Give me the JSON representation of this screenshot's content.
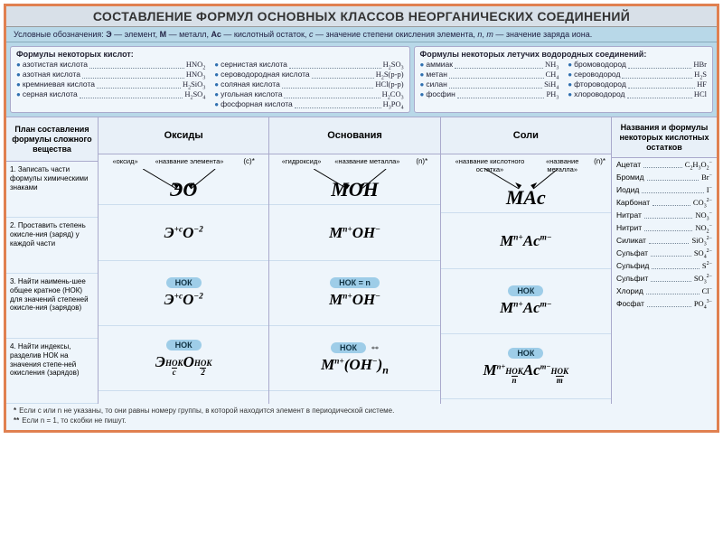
{
  "title": "СОСТАВЛЕНИЕ ФОРМУЛ ОСНОВНЫХ КЛАССОВ НЕОРГАНИЧЕСКИХ СОЕДИНЕНИЙ",
  "legend": "Условные обозначения: Э — элемент, М — металл, Ас — кислотный остаток, с — значение степени окисления элемента, n, m — значение заряда иона.",
  "acids_title": "Формулы некоторых кислот:",
  "acids_col1": [
    {
      "name": "азотистая кислота",
      "f": "HNO₂"
    },
    {
      "name": "азотная кислота",
      "f": "HNO₃"
    },
    {
      "name": "кремниевая кислота",
      "f": "H₂SiO₃"
    },
    {
      "name": "серная кислота",
      "f": "H₂SO₄"
    }
  ],
  "acids_col2": [
    {
      "name": "сернистая кислота",
      "f": "H₂SO₃"
    },
    {
      "name": "сероводородная кислота",
      "f": "H₂S(р-р)"
    },
    {
      "name": "соляная кислота",
      "f": "HCl(р-р)"
    },
    {
      "name": "угольная кислота",
      "f": "H₂CO₃"
    },
    {
      "name": "фосфорная кислота",
      "f": "H₃PO₄"
    }
  ],
  "volatile_title": "Формулы некоторых летучих водородных соединений:",
  "volatile_col1": [
    {
      "name": "аммиак",
      "f": "NH₃"
    },
    {
      "name": "метан",
      "f": "CH₄"
    },
    {
      "name": "силан",
      "f": "SiH₄"
    },
    {
      "name": "фосфин",
      "f": "PH₃"
    }
  ],
  "volatile_col2": [
    {
      "name": "бромоводород",
      "f": "HBr"
    },
    {
      "name": "сероводород",
      "f": "H₂S"
    },
    {
      "name": "фтороводород",
      "f": "HF"
    },
    {
      "name": "хлороводород",
      "f": "HCl"
    }
  ],
  "plan_head": "План составления формулы сложного вещества",
  "steps": [
    "1. Записать части формулы химическими знаками",
    "2. Проставить степень окисле-ния (заряд) у каждой части",
    "3. Найти наимень-шее общее кратное (НОК) для значений степеней окисле-ния (зарядов)",
    "4. Найти индексы, разделив НОК на значения степе-ней окисления (зарядов)"
  ],
  "classes": {
    "oxides": {
      "head": "Оксиды",
      "labels_l": "«оксид»",
      "labels_r": "«название элемента»",
      "note": "(с)*",
      "r1": "ЭO",
      "r2": "Э⁺ᶜO⁻²",
      "r3_pill": "НОК",
      "r3": "ЭO",
      "r4_pill": "НОК",
      "r4": "Э_{НОК/с}O_{НОК/2}"
    },
    "bases": {
      "head": "Основания",
      "labels_l": "«гидроксид»",
      "labels_r": "«название металла»",
      "note": "(n)*",
      "r1": "MOH",
      "r2": "Mⁿ⁺OH⁻",
      "r3_pill": "НОК = n",
      "r3": "Mⁿ⁺OH⁻",
      "r4_pill": "НОК",
      "r4_note": "**",
      "r4": "Mⁿ⁺(OH⁻)ₙ"
    },
    "salts": {
      "head": "Соли",
      "labels_l": "«название кислотного остатка»",
      "labels_r": "«название металла»",
      "note": "(n)*",
      "r1": "MAc",
      "r2": "Mⁿ⁺Acᵐ⁻",
      "r3_pill": "НОК",
      "r3": "Mⁿ⁺Acᵐ⁻",
      "r4_pill": "НОК",
      "r4": "Mⁿ⁺_{НОК/n}Acᵐ⁻_{НОК/m}"
    }
  },
  "residues_head": "Названия и формулы некоторых кислотных остатков",
  "residues": [
    {
      "name": "Ацетат",
      "f": "C₂H₃O₂⁻"
    },
    {
      "name": "Бромид",
      "f": "Br⁻"
    },
    {
      "name": "Иодид",
      "f": "I⁻"
    },
    {
      "name": "Карбонат",
      "f": "CO₃²⁻"
    },
    {
      "name": "Нитрат",
      "f": "NO₃⁻"
    },
    {
      "name": "Нитрит",
      "f": "NO₂⁻"
    },
    {
      "name": "Силикат",
      "f": "SiO₃²⁻"
    },
    {
      "name": "Сульфат",
      "f": "SO₄²⁻"
    },
    {
      "name": "Сульфид",
      "f": "S²⁻"
    },
    {
      "name": "Сульфит",
      "f": "SO₃²⁻"
    },
    {
      "name": "Хлорид",
      "f": "Cl⁻"
    },
    {
      "name": "Фосфат",
      "f": "PO₄³⁻"
    }
  ],
  "footnote1": "Если с или n не указаны, то они равны номеру группы, в которой находится элемент в периодической системе.",
  "footnote2": "Если n = 1, то скобки не пишут."
}
